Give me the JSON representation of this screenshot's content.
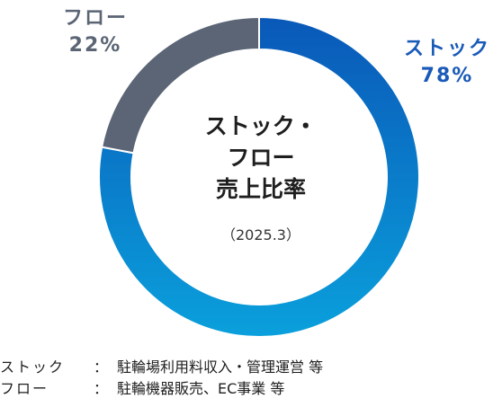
{
  "chart_data": {
    "type": "donut",
    "title_lines": [
      "ストック・",
      "フロー",
      "売上比率"
    ],
    "subtitle": "（2025.3）",
    "slices": [
      {
        "name": "ストック",
        "value": 78,
        "value_label": "78%",
        "color_start": "#0a58b8",
        "color_end": "#0aa0dc"
      },
      {
        "name": "フロー",
        "value": 22,
        "value_label": "22%",
        "color": "#5b6575"
      }
    ]
  },
  "legend": [
    {
      "name": "ストック",
      "sep": "：",
      "desc": "駐輪場利用料収入・管理運営 等"
    },
    {
      "name": "フロー",
      "sep": "：",
      "desc": "駐輪機器販売、EC事業 等"
    }
  ]
}
